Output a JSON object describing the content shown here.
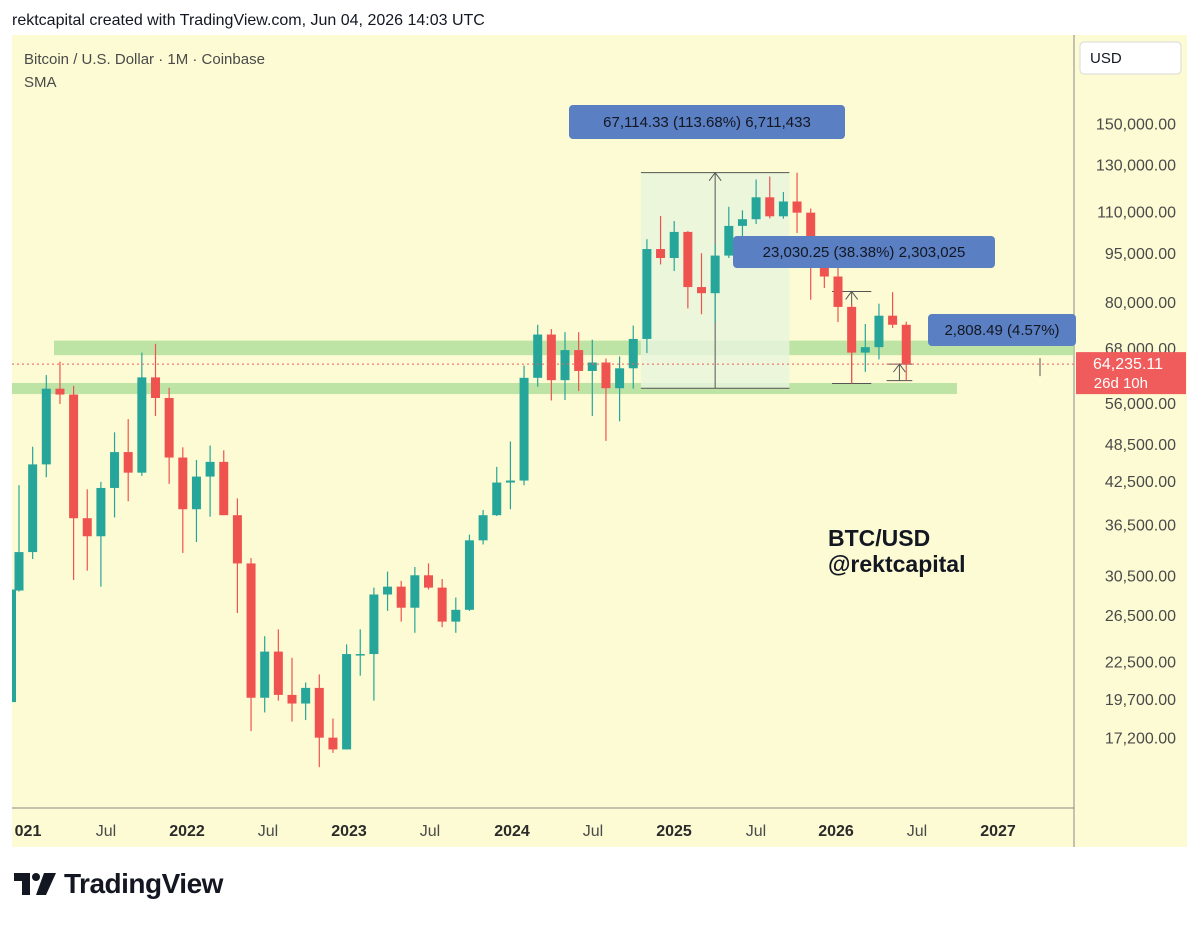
{
  "header": {
    "text": "rektcapital created with TradingView.com, Jun 04, 2026 14:03 UTC"
  },
  "footer": {
    "brand": "TradingView"
  },
  "legend": {
    "symbol_line": "Bitcoin / U.S. Dollar · 1M · Coinbase",
    "indicator": "SMA"
  },
  "watermark": {
    "line1": "BTC/USD",
    "line2": "@rektcapital"
  },
  "axis": {
    "currency": "USD",
    "current_price": "64,235.11",
    "countdown": "26d 10h"
  },
  "colors": {
    "background": "#fdfbd3",
    "up": "#26a69a",
    "down": "#ef5350",
    "zone": "#a8dc96",
    "range_fill": "#e8f5dc",
    "callout": "#5a7fc2",
    "price_tag": "#f05b5b"
  },
  "chart_data": {
    "type": "candlestick",
    "title": "Bitcoin / U.S. Dollar · 1M · Coinbase",
    "y_scale": "log",
    "ylim": [
      14300,
      175000
    ],
    "x_tick_labels": [
      "021",
      "Jul",
      "2022",
      "Jul",
      "2023",
      "Jul",
      "2024",
      "Jul",
      "2025",
      "Jul",
      "2026",
      "Jul",
      "2027"
    ],
    "y_tick_labels": [
      "150,000.00",
      "130,000.00",
      "110,000.00",
      "95,000.00",
      "80,000.00",
      "68,000.00",
      "56,000.00",
      "48,500.00",
      "42,500.00",
      "36,500.00",
      "30,500.00",
      "26,500.00",
      "22,500.00",
      "19,700.00",
      "17,200.00"
    ],
    "y_tick_values": [
      150000,
      130000,
      110000,
      95000,
      80000,
      68000,
      56000,
      48500,
      42500,
      36500,
      30500,
      26500,
      22500,
      19700,
      17200
    ],
    "candles": [
      {
        "o": 28900,
        "h": 41900,
        "l": 28800,
        "c": 33100
      },
      {
        "o": 33100,
        "h": 48000,
        "l": 32300,
        "c": 45100
      },
      {
        "o": 45100,
        "h": 61800,
        "l": 43100,
        "c": 58900
      },
      {
        "o": 58900,
        "h": 64800,
        "l": 55800,
        "c": 57700
      },
      {
        "o": 57700,
        "h": 59500,
        "l": 30000,
        "c": 37300
      },
      {
        "o": 37300,
        "h": 41300,
        "l": 31000,
        "c": 35000
      },
      {
        "o": 35000,
        "h": 42400,
        "l": 29300,
        "c": 41500
      },
      {
        "o": 41500,
        "h": 50500,
        "l": 37400,
        "c": 47100
      },
      {
        "o": 47100,
        "h": 52900,
        "l": 39600,
        "c": 43800
      },
      {
        "o": 43800,
        "h": 66900,
        "l": 43300,
        "c": 61300
      },
      {
        "o": 61300,
        "h": 69000,
        "l": 53500,
        "c": 57000
      },
      {
        "o": 57000,
        "h": 59100,
        "l": 42100,
        "c": 46200
      },
      {
        "o": 46200,
        "h": 47900,
        "l": 33000,
        "c": 38500
      },
      {
        "o": 38500,
        "h": 45800,
        "l": 34300,
        "c": 43200
      },
      {
        "o": 43200,
        "h": 48200,
        "l": 37500,
        "c": 45500
      },
      {
        "o": 45500,
        "h": 47400,
        "l": 37700,
        "c": 37700
      },
      {
        "o": 37700,
        "h": 40000,
        "l": 26700,
        "c": 31800
      },
      {
        "o": 31800,
        "h": 32400,
        "l": 17600,
        "c": 19800
      },
      {
        "o": 19800,
        "h": 24600,
        "l": 18800,
        "c": 23300
      },
      {
        "o": 23300,
        "h": 25200,
        "l": 19600,
        "c": 20000
      },
      {
        "o": 20000,
        "h": 22800,
        "l": 18200,
        "c": 19400
      },
      {
        "o": 19400,
        "h": 20900,
        "l": 18300,
        "c": 20500
      },
      {
        "o": 20500,
        "h": 21500,
        "l": 15500,
        "c": 17200
      },
      {
        "o": 17200,
        "h": 18400,
        "l": 16300,
        "c": 16500
      },
      {
        "o": 16500,
        "h": 23900,
        "l": 16500,
        "c": 23100
      },
      {
        "o": 23100,
        "h": 25200,
        "l": 21400,
        "c": 23100
      },
      {
        "o": 23100,
        "h": 29200,
        "l": 19600,
        "c": 28500
      },
      {
        "o": 28500,
        "h": 30900,
        "l": 26900,
        "c": 29300
      },
      {
        "o": 29300,
        "h": 29900,
        "l": 25900,
        "c": 27200
      },
      {
        "o": 27200,
        "h": 31400,
        "l": 24900,
        "c": 30500
      },
      {
        "o": 30500,
        "h": 31800,
        "l": 29000,
        "c": 29200
      },
      {
        "o": 29200,
        "h": 30100,
        "l": 25400,
        "c": 25900
      },
      {
        "o": 25900,
        "h": 28200,
        "l": 24900,
        "c": 27000
      },
      {
        "o": 27000,
        "h": 35200,
        "l": 26900,
        "c": 34500
      },
      {
        "o": 34500,
        "h": 38400,
        "l": 34000,
        "c": 37700
      },
      {
        "o": 37700,
        "h": 44700,
        "l": 37600,
        "c": 42300
      },
      {
        "o": 42300,
        "h": 48900,
        "l": 38500,
        "c": 42600
      },
      {
        "o": 42600,
        "h": 63900,
        "l": 41900,
        "c": 61200
      },
      {
        "o": 61200,
        "h": 73800,
        "l": 59300,
        "c": 71300
      },
      {
        "o": 71300,
        "h": 72700,
        "l": 56500,
        "c": 60700
      },
      {
        "o": 60700,
        "h": 71900,
        "l": 56600,
        "c": 67500
      },
      {
        "o": 67500,
        "h": 71900,
        "l": 58400,
        "c": 62700
      },
      {
        "o": 62700,
        "h": 70000,
        "l": 53500,
        "c": 64600
      },
      {
        "o": 64600,
        "h": 65500,
        "l": 49000,
        "c": 59000
      },
      {
        "o": 59000,
        "h": 66000,
        "l": 52500,
        "c": 63300
      },
      {
        "o": 63300,
        "h": 73600,
        "l": 58900,
        "c": 70200
      },
      {
        "o": 70200,
        "h": 99800,
        "l": 66800,
        "c": 96400
      },
      {
        "o": 96400,
        "h": 108300,
        "l": 91300,
        "c": 93400
      },
      {
        "o": 93400,
        "h": 106400,
        "l": 89200,
        "c": 102400
      },
      {
        "o": 102400,
        "h": 102700,
        "l": 78200,
        "c": 84300
      },
      {
        "o": 84300,
        "h": 95000,
        "l": 76600,
        "c": 82500
      },
      {
        "o": 82500,
        "h": 97900,
        "l": 74400,
        "c": 94200
      },
      {
        "o": 94200,
        "h": 111900,
        "l": 93400,
        "c": 104600
      },
      {
        "o": 104600,
        "h": 110500,
        "l": 98200,
        "c": 107100
      },
      {
        "o": 107100,
        "h": 123200,
        "l": 105300,
        "c": 115700
      },
      {
        "o": 115700,
        "h": 124500,
        "l": 107400,
        "c": 108200
      },
      {
        "o": 108200,
        "h": 117900,
        "l": 107300,
        "c": 114000
      },
      {
        "o": 114000,
        "h": 126200,
        "l": 102000,
        "c": 109600
      },
      {
        "o": 109600,
        "h": 111200,
        "l": 80600,
        "c": 90400
      },
      {
        "o": 90400,
        "h": 94600,
        "l": 84000,
        "c": 87500
      },
      {
        "o": 87500,
        "h": 97900,
        "l": 74500,
        "c": 78600
      },
      {
        "o": 78600,
        "h": 79500,
        "l": 60000,
        "c": 66900
      },
      {
        "o": 66900,
        "h": 74000,
        "l": 62500,
        "c": 68200
      },
      {
        "o": 68200,
        "h": 79500,
        "l": 65300,
        "c": 76200
      },
      {
        "o": 76200,
        "h": 82800,
        "l": 73000,
        "c": 73800
      },
      {
        "o": 73800,
        "h": 74600,
        "l": 60600,
        "c": 64235
      }
    ],
    "zones": [
      [
        66300,
        69800
      ],
      [
        57800,
        60100
      ]
    ],
    "measurements": [
      {
        "label": "67,114.33 (113.68%) 6,711,433",
        "from_index": 46,
        "to_index": 56,
        "low": 59000,
        "high": 126200
      },
      {
        "label": "23,030.25 (38.38%) 2,303,025",
        "from_index": 60,
        "to_index": 62,
        "low": 60000,
        "high": 83000
      },
      {
        "label": "2,808.49 (4.57%)",
        "from_index": 64,
        "to_index": 65,
        "low": 60600,
        "high": 64235
      }
    ]
  }
}
